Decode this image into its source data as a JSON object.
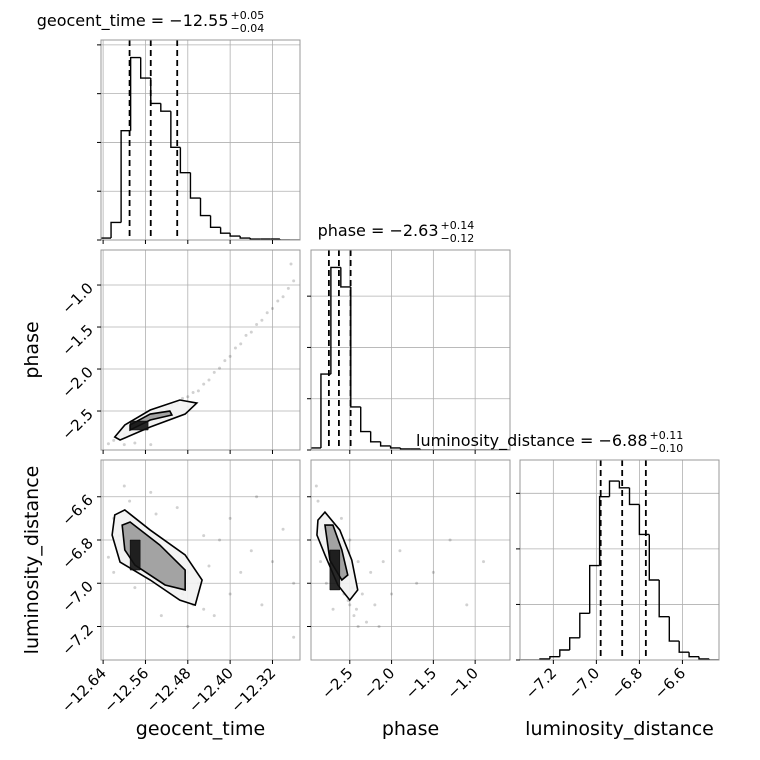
{
  "chart_data": {
    "type": "corner",
    "grid": true,
    "point_color": "#000000",
    "line_color": "#000000",
    "contour_fills": [
      "#f2f2f2",
      "#9a9a9a",
      "#111111"
    ],
    "parameters": [
      {
        "label": "geocent_time",
        "title": "geocent_time = −12.55",
        "title_sup": "+0.05",
        "title_sub": "−0.04",
        "lim": [
          -12.644,
          -12.268
        ],
        "ticks": [
          {
            "value": -12.64,
            "label": "−12.64"
          },
          {
            "value": -12.56,
            "label": "−12.56"
          },
          {
            "value": -12.48,
            "label": "−12.48"
          },
          {
            "value": -12.4,
            "label": "−12.40"
          },
          {
            "value": -12.32,
            "label": "−12.32"
          }
        ],
        "quantiles": [
          -12.59,
          -12.55,
          -12.5
        ],
        "bins": [
          -12.644,
          -12.625,
          -12.606,
          -12.588,
          -12.569,
          -12.55,
          -12.531,
          -12.512,
          -12.494,
          -12.475,
          -12.456,
          -12.437,
          -12.418,
          -12.4,
          -12.381,
          -12.362,
          -12.343,
          -12.324,
          -12.306,
          -12.287,
          -12.268
        ],
        "counts": [
          2,
          18,
          112,
          187,
          166,
          140,
          132,
          95,
          69,
          43,
          25,
          13,
          7,
          4,
          2,
          1,
          1,
          1,
          0,
          0
        ],
        "hist_ylim": [
          0,
          205
        ],
        "hist_yticks": [
          0,
          50,
          100,
          150,
          200
        ]
      },
      {
        "label": "phase",
        "title": "phase = −2.63",
        "title_sup": "+0.14",
        "title_sub": "−0.12",
        "lim": [
          -2.964,
          -0.583
        ],
        "ticks": [
          {
            "value": -2.5,
            "label": "−2.5"
          },
          {
            "value": -2.0,
            "label": "−2.0"
          },
          {
            "value": -1.5,
            "label": "−1.5"
          },
          {
            "value": -1.0,
            "label": "−1.0"
          }
        ],
        "quantiles": [
          -2.75,
          -2.63,
          -2.49
        ],
        "bins": [
          -2.964,
          -2.845,
          -2.726,
          -2.607,
          -2.488,
          -2.369,
          -2.25,
          -2.131,
          -2.012,
          -1.893,
          -1.774,
          -1.655,
          -1.536,
          -1.417,
          -1.298,
          -1.179,
          -1.06,
          -0.941,
          -0.822,
          -0.703,
          -0.584
        ],
        "counts": [
          2,
          74,
          178,
          159,
          42,
          18,
          8,
          4,
          2,
          1,
          1,
          0,
          0,
          0,
          0,
          0,
          0,
          0,
          0,
          0
        ],
        "hist_ylim": [
          0,
          195
        ],
        "hist_yticks": [
          0,
          50,
          100,
          150
        ]
      },
      {
        "label": "luminosity_distance",
        "title": "luminosity_distance = −6.88",
        "title_sup": "+0.11",
        "title_sub": "−0.10",
        "lim": [
          -7.355,
          -6.43
        ],
        "ticks": [
          {
            "value": -7.2,
            "label": "−7.2"
          },
          {
            "value": -7.0,
            "label": "−7.0"
          },
          {
            "value": -6.8,
            "label": "−6.8"
          },
          {
            "value": -6.6,
            "label": "−6.6"
          }
        ],
        "quantiles": [
          -6.98,
          -6.88,
          -6.77
        ],
        "bins": [
          -7.355,
          -7.309,
          -7.262,
          -7.216,
          -7.17,
          -7.124,
          -7.077,
          -7.031,
          -6.985,
          -6.939,
          -6.893,
          -6.846,
          -6.8,
          -6.754,
          -6.708,
          -6.661,
          -6.615,
          -6.569,
          -6.523,
          -6.476,
          -6.43
        ],
        "counts": [
          0,
          0,
          1,
          3,
          9,
          20,
          42,
          85,
          147,
          161,
          155,
          140,
          113,
          72,
          39,
          17,
          7,
          3,
          1,
          0
        ],
        "hist_ylim": [
          0,
          180
        ],
        "hist_yticks": [
          0,
          50,
          100,
          150
        ]
      }
    ],
    "pairs": [
      {
        "x": [
          -12.63,
          -12.62,
          -12.61,
          -12.6,
          -12.59,
          -12.58,
          -12.57,
          -12.56,
          -12.55,
          -12.54,
          -12.53,
          -12.52,
          -12.51,
          -12.5,
          -12.49,
          -12.48,
          -12.47,
          -12.46,
          -12.45,
          -12.44,
          -12.43,
          -12.42,
          -12.41,
          -12.4,
          -12.39,
          -12.38,
          -12.37,
          -12.36,
          -12.35,
          -12.34,
          -12.33,
          -12.32,
          -12.31,
          -12.3,
          -12.29,
          -12.6,
          -12.58,
          -12.55,
          -12.52,
          -12.48,
          -12.285,
          -12.28
        ],
        "y": [
          -2.89,
          -2.85,
          -2.8,
          -2.78,
          -2.72,
          -2.71,
          -2.65,
          -2.63,
          -2.58,
          -2.56,
          -2.5,
          -2.48,
          -2.43,
          -2.41,
          -2.35,
          -2.33,
          -2.28,
          -2.26,
          -2.18,
          -2.13,
          -2.04,
          -1.99,
          -1.9,
          -1.85,
          -1.75,
          -1.7,
          -1.6,
          -1.56,
          -1.47,
          -1.42,
          -1.33,
          -1.28,
          -1.19,
          -1.14,
          -1.04,
          -2.9,
          -2.88,
          -2.9,
          -2.6,
          -2.45,
          -0.75,
          -0.95
        ],
        "contours": [
          {
            "x": [
              -12.618,
              -12.599,
              -12.551,
              -12.495,
              -12.463,
              -12.485,
              -12.551,
              -12.608
            ],
            "y": [
              -2.809,
              -2.666,
              -2.488,
              -2.369,
              -2.405,
              -2.536,
              -2.69,
              -2.845
            ]
          },
          {
            "x": [
              -12.589,
              -12.551,
              -12.514,
              -12.51,
              -12.551,
              -12.589
            ],
            "y": [
              -2.666,
              -2.536,
              -2.5,
              -2.547,
              -2.607,
              -2.726
            ]
          },
          {
            "x": [
              -12.589,
              -12.555,
              -12.555,
              -12.589
            ],
            "y": [
              -2.619,
              -2.619,
              -2.726,
              -2.726
            ]
          }
        ]
      },
      {
        "x": [
          -12.62,
          -12.61,
          -12.6,
          -12.59,
          -12.58,
          -12.57,
          -12.56,
          -12.55,
          -12.54,
          -12.53,
          -12.52,
          -12.51,
          -12.5,
          -12.49,
          -12.48,
          -12.47,
          -12.46,
          -12.45,
          -12.44,
          -12.43,
          -12.42,
          -12.4,
          -12.38,
          -12.36,
          -12.34,
          -12.32,
          -12.3,
          -12.28,
          -12.6,
          -12.55,
          -12.5,
          -12.45,
          -12.62,
          -12.58,
          -12.53,
          -12.48,
          -12.4,
          -12.35,
          -12.28,
          -12.63
        ],
        "y": [
          -6.7,
          -6.78,
          -6.85,
          -6.62,
          -6.75,
          -6.88,
          -6.8,
          -6.93,
          -6.68,
          -6.97,
          -6.85,
          -7.02,
          -6.9,
          -7.05,
          -6.95,
          -7.1,
          -7.0,
          -7.12,
          -6.92,
          -7.15,
          -6.8,
          -7.05,
          -6.95,
          -6.85,
          -7.1,
          -6.9,
          -6.75,
          -7.0,
          -6.55,
          -6.58,
          -6.65,
          -6.78,
          -6.95,
          -7.02,
          -7.15,
          -7.2,
          -6.7,
          -6.6,
          -7.25,
          -6.88
        ],
        "contours": [
          {
            "x": [
              -12.618,
              -12.599,
              -12.551,
              -12.485,
              -12.453,
              -12.466,
              -12.495,
              -12.551,
              -12.608,
              -12.623
            ],
            "y": [
              -6.684,
              -6.661,
              -6.754,
              -6.869,
              -6.985,
              -7.101,
              -7.078,
              -6.985,
              -6.902,
              -6.777
            ]
          },
          {
            "x": [
              -12.604,
              -12.589,
              -12.533,
              -12.485,
              -12.485,
              -12.523,
              -12.58,
              -12.599
            ],
            "y": [
              -6.731,
              -6.717,
              -6.823,
              -6.939,
              -7.031,
              -7.008,
              -6.916,
              -6.846
            ]
          },
          {
            "x": [
              -12.589,
              -12.57,
              -12.57,
              -12.589
            ],
            "y": [
              -6.8,
              -6.8,
              -6.939,
              -6.939
            ]
          }
        ]
      },
      {
        "x": [
          -2.9,
          -2.88,
          -2.85,
          -2.82,
          -2.8,
          -2.78,
          -2.75,
          -2.72,
          -2.7,
          -2.68,
          -2.65,
          -2.62,
          -2.6,
          -2.57,
          -2.55,
          -2.52,
          -2.5,
          -2.47,
          -2.45,
          -2.42,
          -2.4,
          -2.35,
          -2.3,
          -2.25,
          -2.2,
          -2.1,
          -2.0,
          -1.9,
          -1.7,
          -1.5,
          -1.3,
          -1.1,
          -0.9,
          -2.85,
          -2.78,
          -2.6,
          -2.5,
          -2.4,
          -2.15,
          -2.7
        ],
        "y": [
          -6.55,
          -6.62,
          -6.7,
          -6.75,
          -6.68,
          -6.82,
          -6.88,
          -6.8,
          -6.92,
          -6.95,
          -6.85,
          -7.0,
          -6.98,
          -7.05,
          -6.95,
          -7.08,
          -7.1,
          -7.02,
          -7.15,
          -7.12,
          -7.2,
          -7.05,
          -7.18,
          -6.95,
          -7.1,
          -6.9,
          -7.05,
          -6.85,
          -7.0,
          -6.95,
          -6.8,
          -7.1,
          -6.9,
          -6.9,
          -7.0,
          -6.7,
          -6.8,
          -6.9,
          -7.2,
          -7.12
        ],
        "contours": [
          {
            "x": [
              -2.881,
              -2.797,
              -2.619,
              -2.476,
              -2.405,
              -2.5,
              -2.643,
              -2.797,
              -2.893
            ],
            "y": [
              -6.708,
              -6.671,
              -6.754,
              -6.893,
              -7.031,
              -7.078,
              -7.008,
              -6.869,
              -6.777
            ]
          },
          {
            "x": [
              -2.797,
              -2.702,
              -2.595,
              -2.524,
              -2.595,
              -2.738
            ],
            "y": [
              -6.731,
              -6.731,
              -6.846,
              -6.962,
              -6.985,
              -6.893
            ]
          },
          {
            "x": [
              -2.738,
              -2.619,
              -2.619,
              -2.738
            ],
            "y": [
              -6.846,
              -6.846,
              -7.031,
              -7.031
            ]
          }
        ]
      }
    ]
  }
}
